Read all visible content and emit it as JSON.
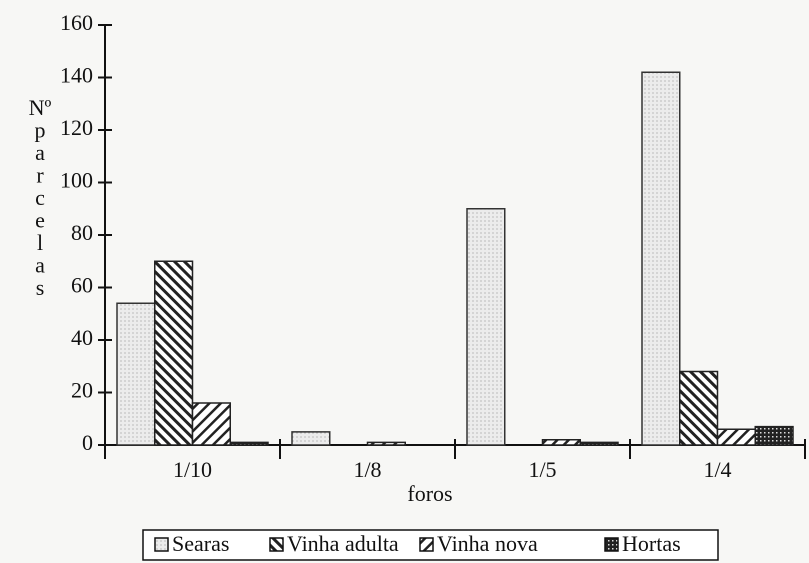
{
  "chart_data": {
    "type": "bar",
    "y_label": "Nº parcelas",
    "x_label": "foros",
    "categories": [
      "1/10",
      "1/8",
      "1/5",
      "1/4"
    ],
    "series": [
      {
        "name": "Searas",
        "color": "#e8e8e8",
        "hatch": "dots",
        "values": [
          54,
          5,
          90,
          142
        ]
      },
      {
        "name": "Vinha adulta",
        "color": "#222222",
        "hatch": "back",
        "values": [
          70,
          0,
          0,
          28
        ]
      },
      {
        "name": "Vinha nova",
        "color": "#222222",
        "hatch": "forward",
        "values": [
          16,
          1,
          2,
          6
        ]
      },
      {
        "name": "Hortas",
        "color": "#222222",
        "hatch": "grid",
        "values": [
          1,
          0,
          1,
          7
        ]
      }
    ],
    "ylim": [
      0,
      160
    ],
    "yticks": [
      0,
      20,
      40,
      60,
      80,
      100,
      120,
      140,
      160
    ]
  }
}
